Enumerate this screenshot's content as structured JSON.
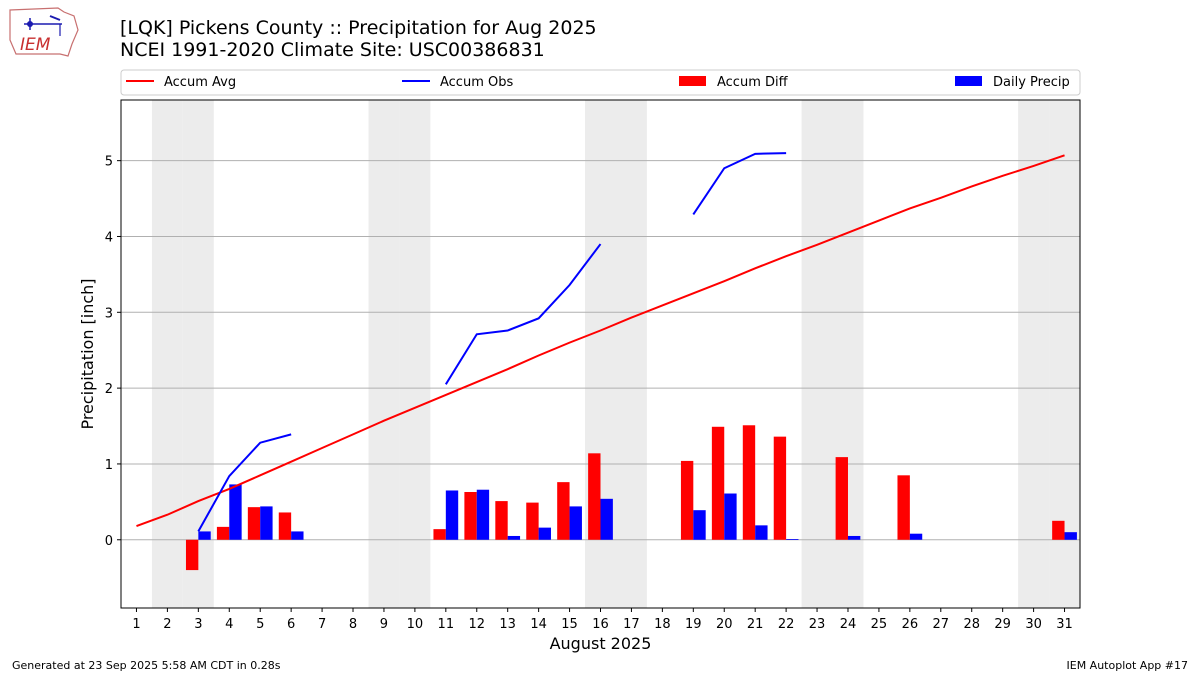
{
  "title_line1": "[LQK] Pickens County :: Precipitation for Aug 2025",
  "title_line2": "NCEI 1991-2020 Climate Site: USC00386831",
  "logo_text": "IEM",
  "footer_left": "Generated at 23 Sep 2025 5:58 AM CDT in 0.28s",
  "footer_right": "IEM Autoplot App #17",
  "colors": {
    "avg": "#ff0000",
    "obs": "#0000ff",
    "diff": "#ff0000",
    "daily": "#0000ff",
    "weekend": "#ececec",
    "grid": "#b0b0b0"
  },
  "chart_data": {
    "type": "bar",
    "xlabel": "August 2025",
    "ylabel": "Precipitation [inch]",
    "xlim": [
      0.5,
      31.5
    ],
    "ylim": [
      -0.9,
      5.8
    ],
    "yticks": [
      0,
      1,
      2,
      3,
      4,
      5
    ],
    "grid": "y",
    "legend_placement": "top",
    "categories": [
      "1",
      "2",
      "3",
      "4",
      "5",
      "6",
      "7",
      "8",
      "9",
      "10",
      "11",
      "12",
      "13",
      "14",
      "15",
      "16",
      "17",
      "18",
      "19",
      "20",
      "21",
      "22",
      "23",
      "24",
      "25",
      "26",
      "27",
      "28",
      "29",
      "30",
      "31"
    ],
    "weekend_days": [
      2,
      3,
      9,
      10,
      16,
      17,
      23,
      24,
      30,
      31
    ],
    "legend": [
      "Accum Avg",
      "Accum Obs",
      "Accum Diff",
      "Daily Precip"
    ],
    "series": [
      {
        "name": "Accum Avg",
        "kind": "line",
        "values": [
          0.18,
          0.33,
          0.51,
          0.67,
          0.85,
          1.03,
          1.21,
          1.39,
          1.57,
          1.74,
          1.91,
          2.08,
          2.25,
          2.43,
          2.6,
          2.76,
          2.93,
          3.09,
          3.25,
          3.41,
          3.58,
          3.74,
          3.89,
          4.05,
          4.21,
          4.37,
          4.51,
          4.66,
          4.8,
          4.93,
          5.07
        ]
      },
      {
        "name": "Accum Obs",
        "kind": "line",
        "values": [
          null,
          null,
          0.11,
          0.84,
          1.28,
          1.39,
          null,
          null,
          null,
          null,
          2.05,
          2.71,
          2.76,
          2.92,
          3.36,
          3.9,
          null,
          null,
          4.29,
          4.9,
          5.09,
          5.1,
          null,
          null,
          null,
          null,
          null,
          null,
          null,
          null,
          null
        ]
      },
      {
        "name": "Accum Diff",
        "kind": "bar",
        "values": [
          null,
          null,
          -0.4,
          0.17,
          0.43,
          0.36,
          null,
          null,
          null,
          null,
          0.14,
          0.63,
          0.51,
          0.49,
          0.76,
          1.14,
          null,
          null,
          1.04,
          1.49,
          1.51,
          1.36,
          null,
          1.09,
          null,
          0.85,
          null,
          null,
          null,
          null,
          0.25
        ]
      },
      {
        "name": "Daily Precip",
        "kind": "bar",
        "values": [
          null,
          null,
          0.11,
          0.73,
          0.44,
          0.11,
          null,
          null,
          null,
          null,
          0.65,
          0.66,
          0.05,
          0.16,
          0.44,
          0.54,
          null,
          null,
          0.39,
          0.61,
          0.19,
          0.01,
          null,
          0.05,
          null,
          0.08,
          null,
          null,
          null,
          null,
          0.1
        ]
      }
    ]
  }
}
